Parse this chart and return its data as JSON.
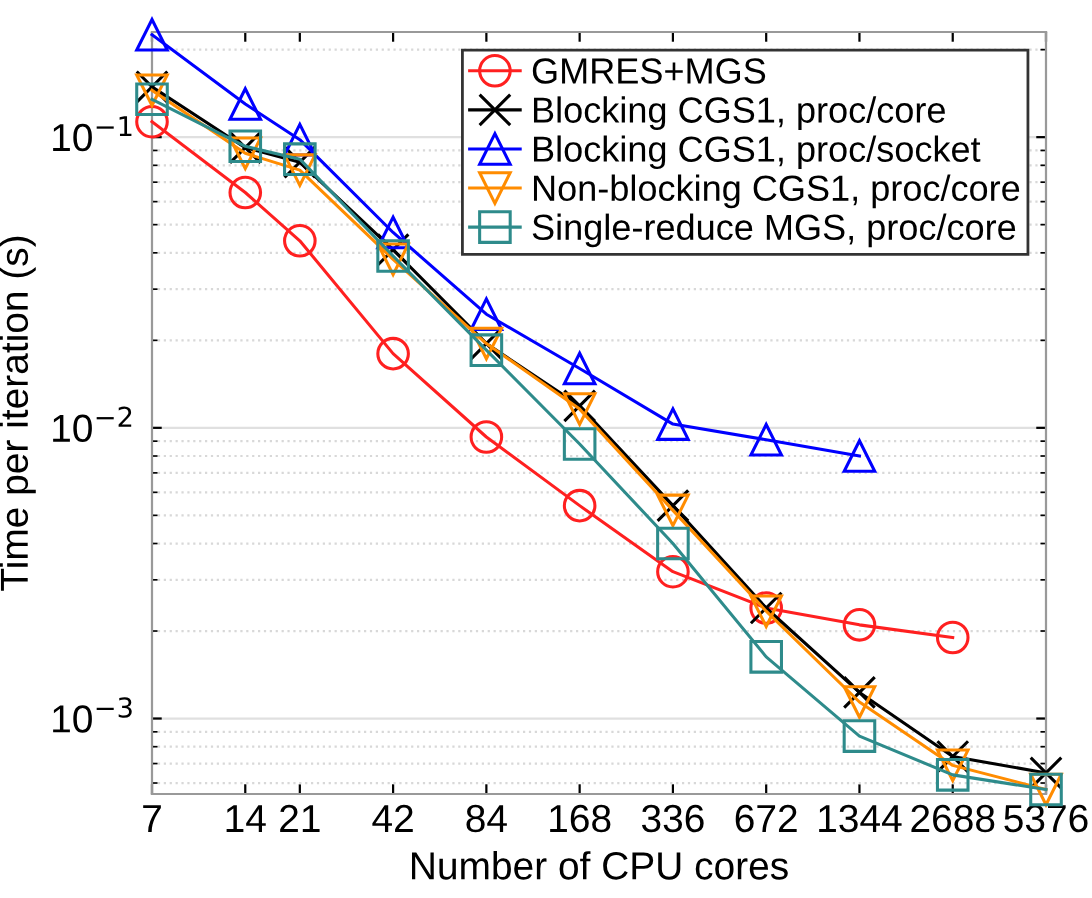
{
  "chart_data": {
    "type": "line",
    "xlabel": "Number of CPU cores",
    "ylabel": "Time per iteration (s)",
    "log": "xy",
    "grid": "y",
    "legend": "top right",
    "xlim": [
      7,
      5376
    ],
    "xticks": [
      7,
      14,
      21,
      42,
      84,
      168,
      336,
      672,
      1344,
      2688,
      5376
    ],
    "ylim": [
      0.00055,
      0.23
    ],
    "yticks": [
      {
        "value": 0.001,
        "label": "10$^{−3}$"
      },
      {
        "value": 0.01,
        "label": "10$^{−2}$"
      },
      {
        "value": 0.1,
        "label": "10$^{−1}$"
      }
    ],
    "series": [
      {
        "name": "GMRES+MGS",
        "color": "#ff2020",
        "marker": "circle",
        "x": [
          7,
          14,
          21,
          42,
          84,
          168,
          336,
          672,
          1344,
          2688
        ],
        "values": [
          0.113,
          0.0645,
          0.044,
          0.018,
          0.0093,
          0.0054,
          0.0032,
          0.0024,
          0.0021,
          0.0019
        ]
      },
      {
        "name": "Blocking CGS1, proc/core",
        "color": "#000000",
        "marker": "cross",
        "x": [
          7,
          14,
          21,
          42,
          84,
          168,
          336,
          672,
          1344,
          2688,
          5376
        ],
        "values": [
          0.149,
          0.092,
          0.082,
          0.041,
          0.0195,
          0.0119,
          0.0054,
          0.0024,
          0.00123,
          0.00074,
          0.00065
        ]
      },
      {
        "name": "Blocking CGS1, proc/socket",
        "color": "#0000ff",
        "marker": "triangle",
        "x": [
          7,
          14,
          21,
          42,
          84,
          168,
          336,
          672,
          1344
        ],
        "values": [
          0.225,
          0.13,
          0.098,
          0.047,
          0.0246,
          0.016,
          0.0103,
          0.0091,
          0.008
        ]
      },
      {
        "name": "Non-blocking CGS1, proc/core",
        "color": "#ff8c00",
        "marker": "triangle_down",
        "x": [
          7,
          14,
          21,
          42,
          84,
          168,
          336,
          672,
          1344,
          2688,
          5376
        ],
        "values": [
          0.145,
          0.088,
          0.077,
          0.038,
          0.0195,
          0.0116,
          0.0052,
          0.00234,
          0.00114,
          0.00069,
          0.00057
        ]
      },
      {
        "name": "Single-reduce MGS, proc/core",
        "color": "#2e8b8b",
        "marker": "square",
        "x": [
          7,
          14,
          21,
          42,
          84,
          168,
          336,
          672,
          1344,
          2688,
          5376
        ],
        "values": [
          0.135,
          0.093,
          0.084,
          0.039,
          0.0185,
          0.0088,
          0.004,
          0.00163,
          0.00087,
          0.00064,
          0.00057
        ]
      }
    ]
  }
}
